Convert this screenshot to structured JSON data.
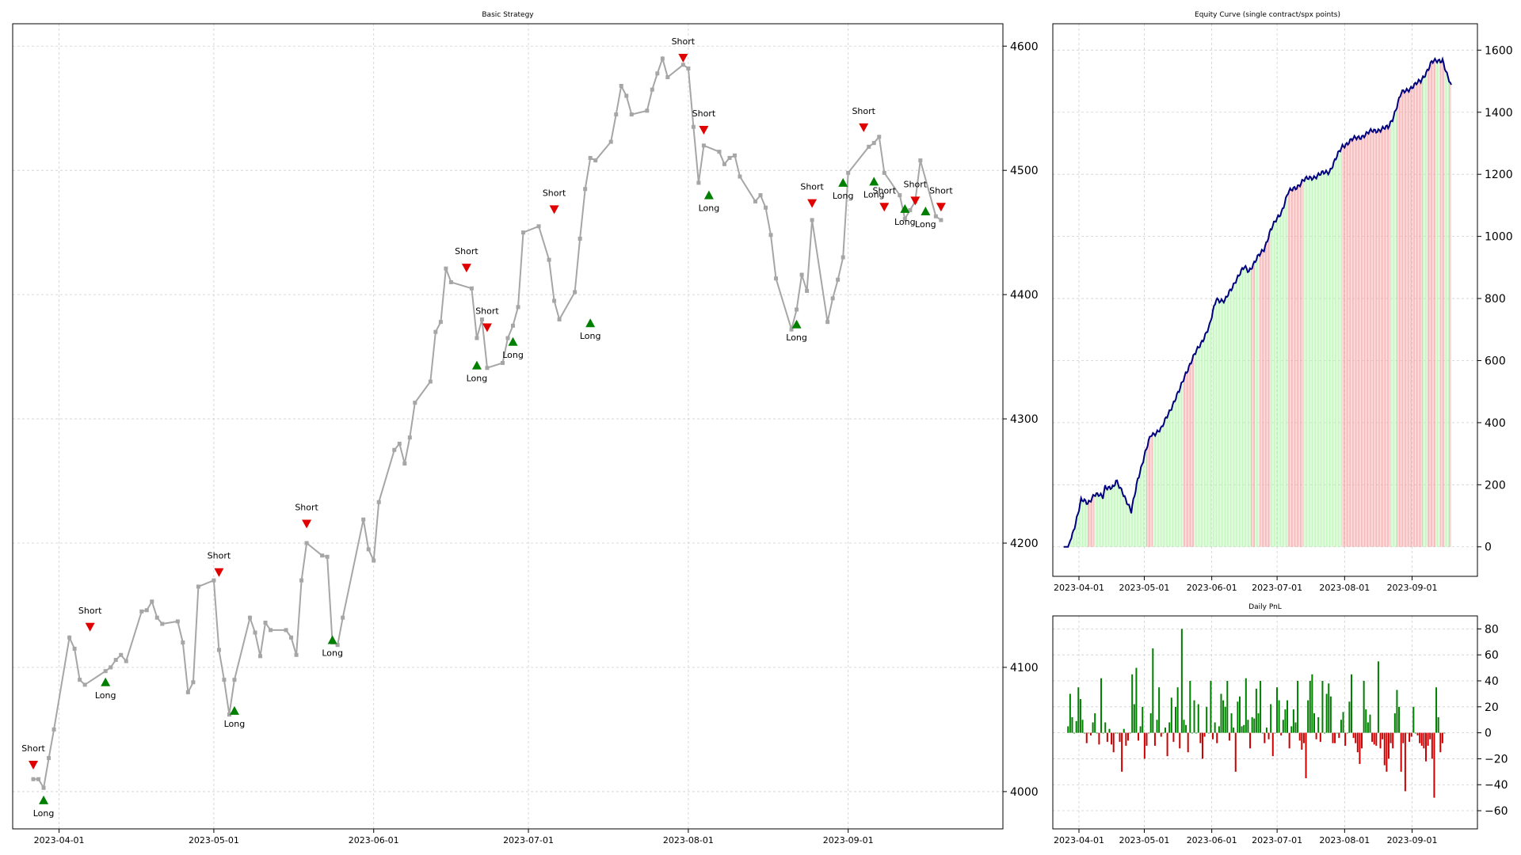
{
  "chart_data": [
    {
      "type": "line",
      "title": "Basic Strategy",
      "xlabel": "",
      "ylabel": "",
      "ylim": [
        3970,
        4618
      ],
      "xlim": [
        "2023-03-23",
        "2023-10-01"
      ],
      "grid": true,
      "x_ticks": [
        "2023-04-01",
        "2023-05-01",
        "2023-06-01",
        "2023-07-01",
        "2023-08-01",
        "2023-09-01"
      ],
      "y_ticks": [
        4000,
        4100,
        4200,
        4300,
        4400,
        4500,
        4600
      ],
      "color_line": "#a6a6a6",
      "series": [
        {
          "x": [
            "2023-03-27",
            "2023-03-28",
            "2023-03-29",
            "2023-03-30",
            "2023-03-31",
            "2023-04-03",
            "2023-04-04",
            "2023-04-05",
            "2023-04-06",
            "2023-04-10",
            "2023-04-11",
            "2023-04-12",
            "2023-04-13",
            "2023-04-14",
            "2023-04-17",
            "2023-04-18",
            "2023-04-19",
            "2023-04-20",
            "2023-04-21",
            "2023-04-24",
            "2023-04-25",
            "2023-04-26",
            "2023-04-27",
            "2023-04-28",
            "2023-05-01",
            "2023-05-02",
            "2023-05-03",
            "2023-05-04",
            "2023-05-05",
            "2023-05-08",
            "2023-05-09",
            "2023-05-10",
            "2023-05-11",
            "2023-05-12",
            "2023-05-15",
            "2023-05-16",
            "2023-05-17",
            "2023-05-18",
            "2023-05-19",
            "2023-05-22",
            "2023-05-23",
            "2023-05-24",
            "2023-05-25",
            "2023-05-26",
            "2023-05-30",
            "2023-05-31",
            "2023-06-01",
            "2023-06-02",
            "2023-06-05",
            "2023-06-06",
            "2023-06-07",
            "2023-06-08",
            "2023-06-09",
            "2023-06-12",
            "2023-06-13",
            "2023-06-14",
            "2023-06-15",
            "2023-06-16",
            "2023-06-20",
            "2023-06-21",
            "2023-06-22",
            "2023-06-23",
            "2023-06-26",
            "2023-06-27",
            "2023-06-28",
            "2023-06-29",
            "2023-06-30",
            "2023-07-03",
            "2023-07-05",
            "2023-07-06",
            "2023-07-07",
            "2023-07-10",
            "2023-07-11",
            "2023-07-12",
            "2023-07-13",
            "2023-07-14",
            "2023-07-17",
            "2023-07-18",
            "2023-07-19",
            "2023-07-20",
            "2023-07-21",
            "2023-07-24",
            "2023-07-25",
            "2023-07-26",
            "2023-07-27",
            "2023-07-28",
            "2023-07-31",
            "2023-08-01",
            "2023-08-02",
            "2023-08-03",
            "2023-08-04",
            "2023-08-07",
            "2023-08-08",
            "2023-08-09",
            "2023-08-10",
            "2023-08-11",
            "2023-08-14",
            "2023-08-15",
            "2023-08-16",
            "2023-08-17",
            "2023-08-18",
            "2023-08-21",
            "2023-08-22",
            "2023-08-23",
            "2023-08-24",
            "2023-08-25",
            "2023-08-28",
            "2023-08-29",
            "2023-08-30",
            "2023-08-31",
            "2023-09-01",
            "2023-09-05",
            "2023-09-06",
            "2023-09-07",
            "2023-09-08",
            "2023-09-11",
            "2023-09-12",
            "2023-09-13",
            "2023-09-14",
            "2023-09-15",
            "2023-09-18",
            "2023-09-19"
          ],
          "y": [
            4010,
            4010,
            4003,
            4027,
            4050,
            4124,
            4115,
            4090,
            4086,
            4097,
            4100,
            4106,
            4110,
            4105,
            4145,
            4146,
            4153,
            4140,
            4135,
            4137,
            4120,
            4080,
            4088,
            4165,
            4170,
            4114,
            4090,
            4062,
            4090,
            4140,
            4128,
            4109,
            4136,
            4130,
            4130,
            4124,
            4110,
            4170,
            4200,
            4190,
            4189,
            4120,
            4118,
            4140,
            4219,
            4195,
            4186,
            4233,
            4275,
            4280,
            4264,
            4285,
            4313,
            4330,
            4370,
            4378,
            4421,
            4410,
            4405,
            4365,
            4380,
            4341,
            4345,
            4365,
            4375,
            4390,
            4450,
            4455,
            4428,
            4395,
            4380,
            4402,
            4445,
            4485,
            4510,
            4508,
            4523,
            4545,
            4568,
            4560,
            4545,
            4548,
            4565,
            4578,
            4590,
            4575,
            4585,
            4582,
            4535,
            4490,
            4520,
            4515,
            4505,
            4510,
            4512,
            4495,
            4475,
            4480,
            4470,
            4448,
            4413,
            4372,
            4388,
            4416,
            4403,
            4460,
            4378,
            4397,
            4412,
            4430,
            4498,
            4519,
            4522,
            4527,
            4498,
            4480,
            4461,
            4468,
            4475,
            4508,
            4463,
            4460
          ]
        }
      ],
      "signals": [
        {
          "label": "Short",
          "date": "2023-03-27",
          "value": 4021
        },
        {
          "label": "Long",
          "date": "2023-03-29",
          "value": 3993
        },
        {
          "label": "Short",
          "date": "2023-04-07",
          "value": 4132
        },
        {
          "label": "Long",
          "date": "2023-04-10",
          "value": 4088
        },
        {
          "label": "Short",
          "date": "2023-05-02",
          "value": 4176
        },
        {
          "label": "Long",
          "date": "2023-05-05",
          "value": 4065
        },
        {
          "label": "Short",
          "date": "2023-05-19",
          "value": 4215
        },
        {
          "label": "Long",
          "date": "2023-05-24",
          "value": 4122
        },
        {
          "label": "Short",
          "date": "2023-06-19",
          "value": 4421
        },
        {
          "label": "Long",
          "date": "2023-06-21",
          "value": 4343
        },
        {
          "label": "Short",
          "date": "2023-06-23",
          "value": 4373
        },
        {
          "label": "Long",
          "date": "2023-06-28",
          "value": 4362
        },
        {
          "label": "Short",
          "date": "2023-07-06",
          "value": 4468
        },
        {
          "label": "Long",
          "date": "2023-07-13",
          "value": 4377
        },
        {
          "label": "Short",
          "date": "2023-07-31",
          "value": 4590
        },
        {
          "label": "Short",
          "date": "2023-08-04",
          "value": 4532
        },
        {
          "label": "Long",
          "date": "2023-08-05",
          "value": 4480
        },
        {
          "label": "Long",
          "date": "2023-08-22",
          "value": 4376
        },
        {
          "label": "Short",
          "date": "2023-08-25",
          "value": 4473
        },
        {
          "label": "Long",
          "date": "2023-08-31",
          "value": 4490
        },
        {
          "label": "Short",
          "date": "2023-09-04",
          "value": 4534
        },
        {
          "label": "Long",
          "date": "2023-09-06",
          "value": 4491
        },
        {
          "label": "Short",
          "date": "2023-09-08",
          "value": 4470
        },
        {
          "label": "Long",
          "date": "2023-09-12",
          "value": 4469
        },
        {
          "label": "Short",
          "date": "2023-09-14",
          "value": 4475
        },
        {
          "label": "Long",
          "date": "2023-09-16",
          "value": 4467
        },
        {
          "label": "Short",
          "date": "2023-09-19",
          "value": 4470
        }
      ]
    },
    {
      "type": "area",
      "title": "Equity Curve (single contract/spx points)",
      "xlabel": "",
      "ylabel": "",
      "ylim": [
        -95,
        1685
      ],
      "xlim": [
        "2023-03-20",
        "2023-10-01"
      ],
      "grid": true,
      "x_ticks": [
        "2023-04-01",
        "2023-05-01",
        "2023-06-01",
        "2023-07-01",
        "2023-08-01",
        "2023-09-01"
      ],
      "y_ticks": [
        0,
        200,
        400,
        600,
        800,
        1000,
        1200,
        1400,
        1600
      ],
      "color_line": "#00007f",
      "color_long_fill": "#b7f5b0",
      "color_short_fill": "#f4a6a6",
      "anchors": {
        "x": [
          "2023-03-25",
          "2023-03-27",
          "2023-03-29",
          "2023-04-02",
          "2023-04-05",
          "2023-04-08",
          "2023-04-12",
          "2023-04-13",
          "2023-04-17",
          "2023-04-18",
          "2023-04-21",
          "2023-04-25",
          "2023-04-28",
          "2023-05-04",
          "2023-05-09",
          "2023-05-12",
          "2023-05-17",
          "2023-05-20",
          "2023-05-25",
          "2023-05-31",
          "2023-06-03",
          "2023-06-07",
          "2023-06-12",
          "2023-06-16",
          "2023-06-18",
          "2023-06-25",
          "2023-06-28",
          "2023-07-03",
          "2023-07-06",
          "2023-07-10",
          "2023-07-13",
          "2023-07-17",
          "2023-07-25",
          "2023-07-31",
          "2023-08-04",
          "2023-08-08",
          "2023-08-14",
          "2023-08-21",
          "2023-08-23",
          "2023-08-27",
          "2023-09-05",
          "2023-09-10",
          "2023-09-15",
          "2023-09-17",
          "2023-09-19"
        ],
        "y": [
          0,
          0,
          40,
          150,
          140,
          170,
          160,
          195,
          190,
          210,
          180,
          110,
          220,
          360,
          380,
          430,
          500,
          560,
          630,
          710,
          800,
          790,
          860,
          900,
          890,
          960,
          1020,
          1080,
          1140,
          1160,
          1180,
          1190,
          1210,
          1290,
          1310,
          1320,
          1340,
          1350,
          1380,
          1460,
          1500,
          1560,
          1570,
          1520,
          1480
        ]
      }
    },
    {
      "type": "bar",
      "title": "Daily PnL",
      "xlabel": "",
      "ylabel": "",
      "ylim": [
        -74,
        90
      ],
      "xlim": [
        "2023-03-20",
        "2023-10-01"
      ],
      "grid": true,
      "x_ticks": [
        "2023-04-01",
        "2023-05-01",
        "2023-06-01",
        "2023-07-01",
        "2023-08-01",
        "2023-09-01"
      ],
      "y_ticks": [
        -60,
        -40,
        -20,
        0,
        20,
        40,
        60,
        80
      ],
      "color_positive": "#007f00",
      "color_negative": "#cc0000",
      "start_date": "2023-03-27",
      "values": [
        5,
        30,
        12,
        0,
        9,
        35,
        26,
        10,
        0,
        -8,
        0,
        -2,
        8,
        15,
        0,
        -9,
        42,
        0,
        8,
        -7,
        3,
        -9,
        -15,
        0,
        0,
        -7,
        -30,
        3,
        -10,
        -6,
        0,
        45,
        22,
        50,
        -6,
        5,
        20,
        -20,
        -10,
        0,
        15,
        65,
        -10,
        10,
        35,
        -3,
        0,
        4,
        -18,
        8,
        27,
        -7,
        20,
        35,
        -12,
        80,
        10,
        6,
        -15,
        40,
        0,
        25,
        0,
        22,
        -8,
        -20,
        -3,
        20,
        0,
        40,
        -5,
        8,
        -8,
        5,
        30,
        25,
        20,
        40,
        -6,
        15,
        4,
        -30,
        24,
        28,
        5,
        6,
        42,
        10,
        -12,
        12,
        11,
        34,
        15,
        40,
        0,
        -8,
        4,
        -5,
        22,
        -18,
        0,
        35,
        25,
        -2,
        10,
        18,
        25,
        -12,
        5,
        18,
        8,
        40,
        -6,
        -13,
        -8,
        -35,
        25,
        40,
        45,
        15,
        -5,
        12,
        -7,
        40,
        0,
        30,
        38,
        28,
        -8,
        -8,
        0,
        -4,
        10,
        16,
        -10,
        0,
        24,
        45,
        -4,
        -8,
        -15,
        -24,
        -12,
        40,
        18,
        8,
        14,
        -7,
        -9,
        -10,
        55,
        -12,
        -5,
        -25,
        -30,
        -20,
        -8,
        -12,
        15,
        33,
        20,
        -30,
        -8,
        -45,
        0,
        -7,
        -3,
        20,
        0,
        -2,
        -8,
        -10,
        -12,
        -22,
        -10,
        -5,
        -20,
        -50,
        35,
        12,
        -15,
        -8,
        0
      ]
    }
  ]
}
